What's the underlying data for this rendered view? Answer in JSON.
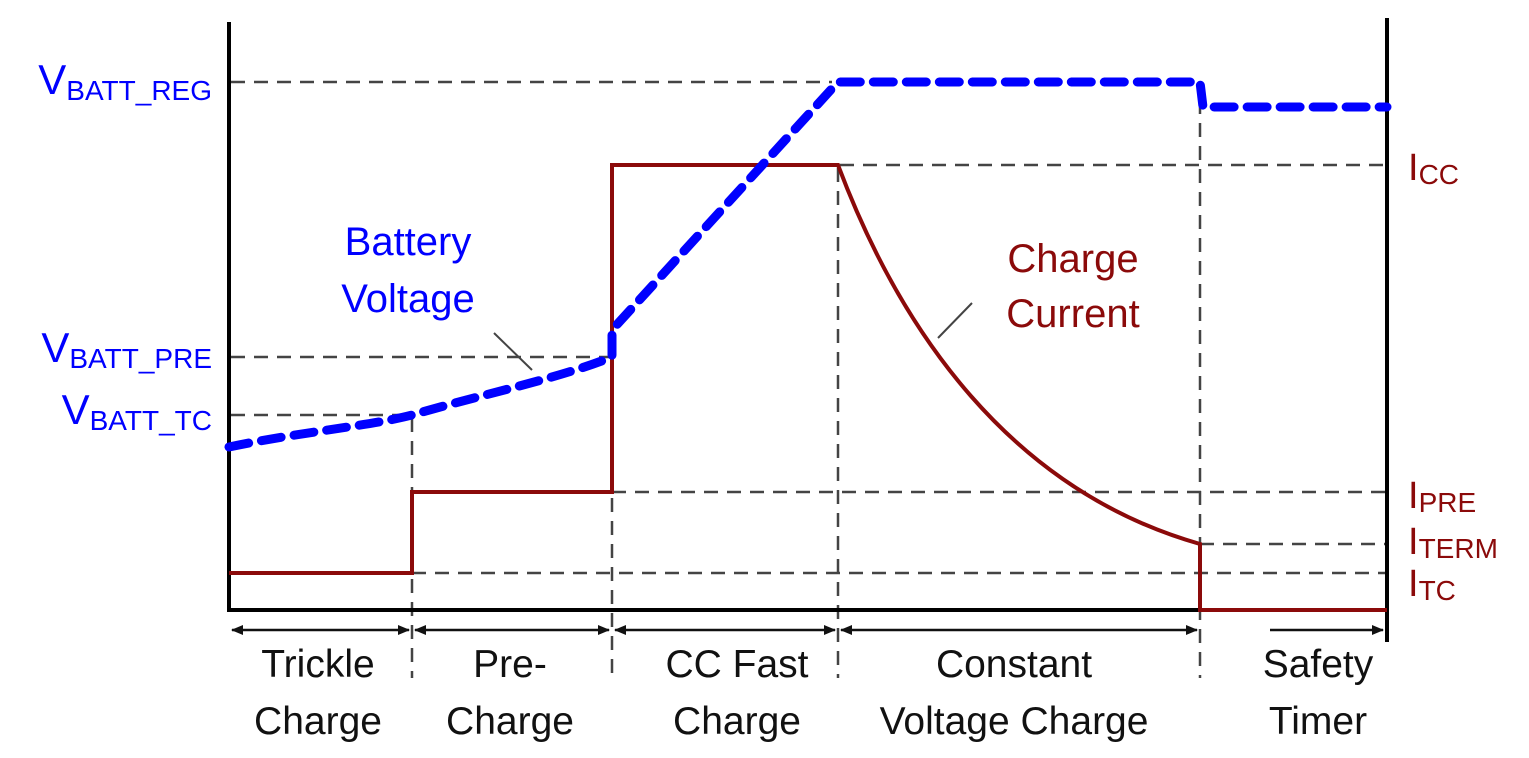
{
  "voltage_levels": [
    {
      "main": "V",
      "sub": "BATT_REG"
    },
    {
      "main": "V",
      "sub": "BATT_PRE"
    },
    {
      "main": "V",
      "sub": "BATT_TC"
    }
  ],
  "current_levels": [
    {
      "main": "I",
      "sub": "CC"
    },
    {
      "main": "I",
      "sub": "PRE"
    },
    {
      "main": "I",
      "sub": "TERM"
    },
    {
      "main": "I",
      "sub": "TC"
    }
  ],
  "curve_labels": {
    "voltage": [
      "Battery",
      "Voltage"
    ],
    "current": [
      "Charge",
      "Current"
    ]
  },
  "phases": [
    {
      "line1": "Trickle",
      "line2": "Charge"
    },
    {
      "line1": "Pre-",
      "line2": "Charge"
    },
    {
      "line1": "CC Fast",
      "line2": "Charge"
    },
    {
      "line1": "Constant",
      "line2": "Voltage Charge"
    },
    {
      "line1": "Safety",
      "line2": "Timer"
    }
  ],
  "colors": {
    "voltage": "#0000ff",
    "current": "#8b0a0a",
    "axes": "#000000",
    "guides": "#444444"
  }
}
